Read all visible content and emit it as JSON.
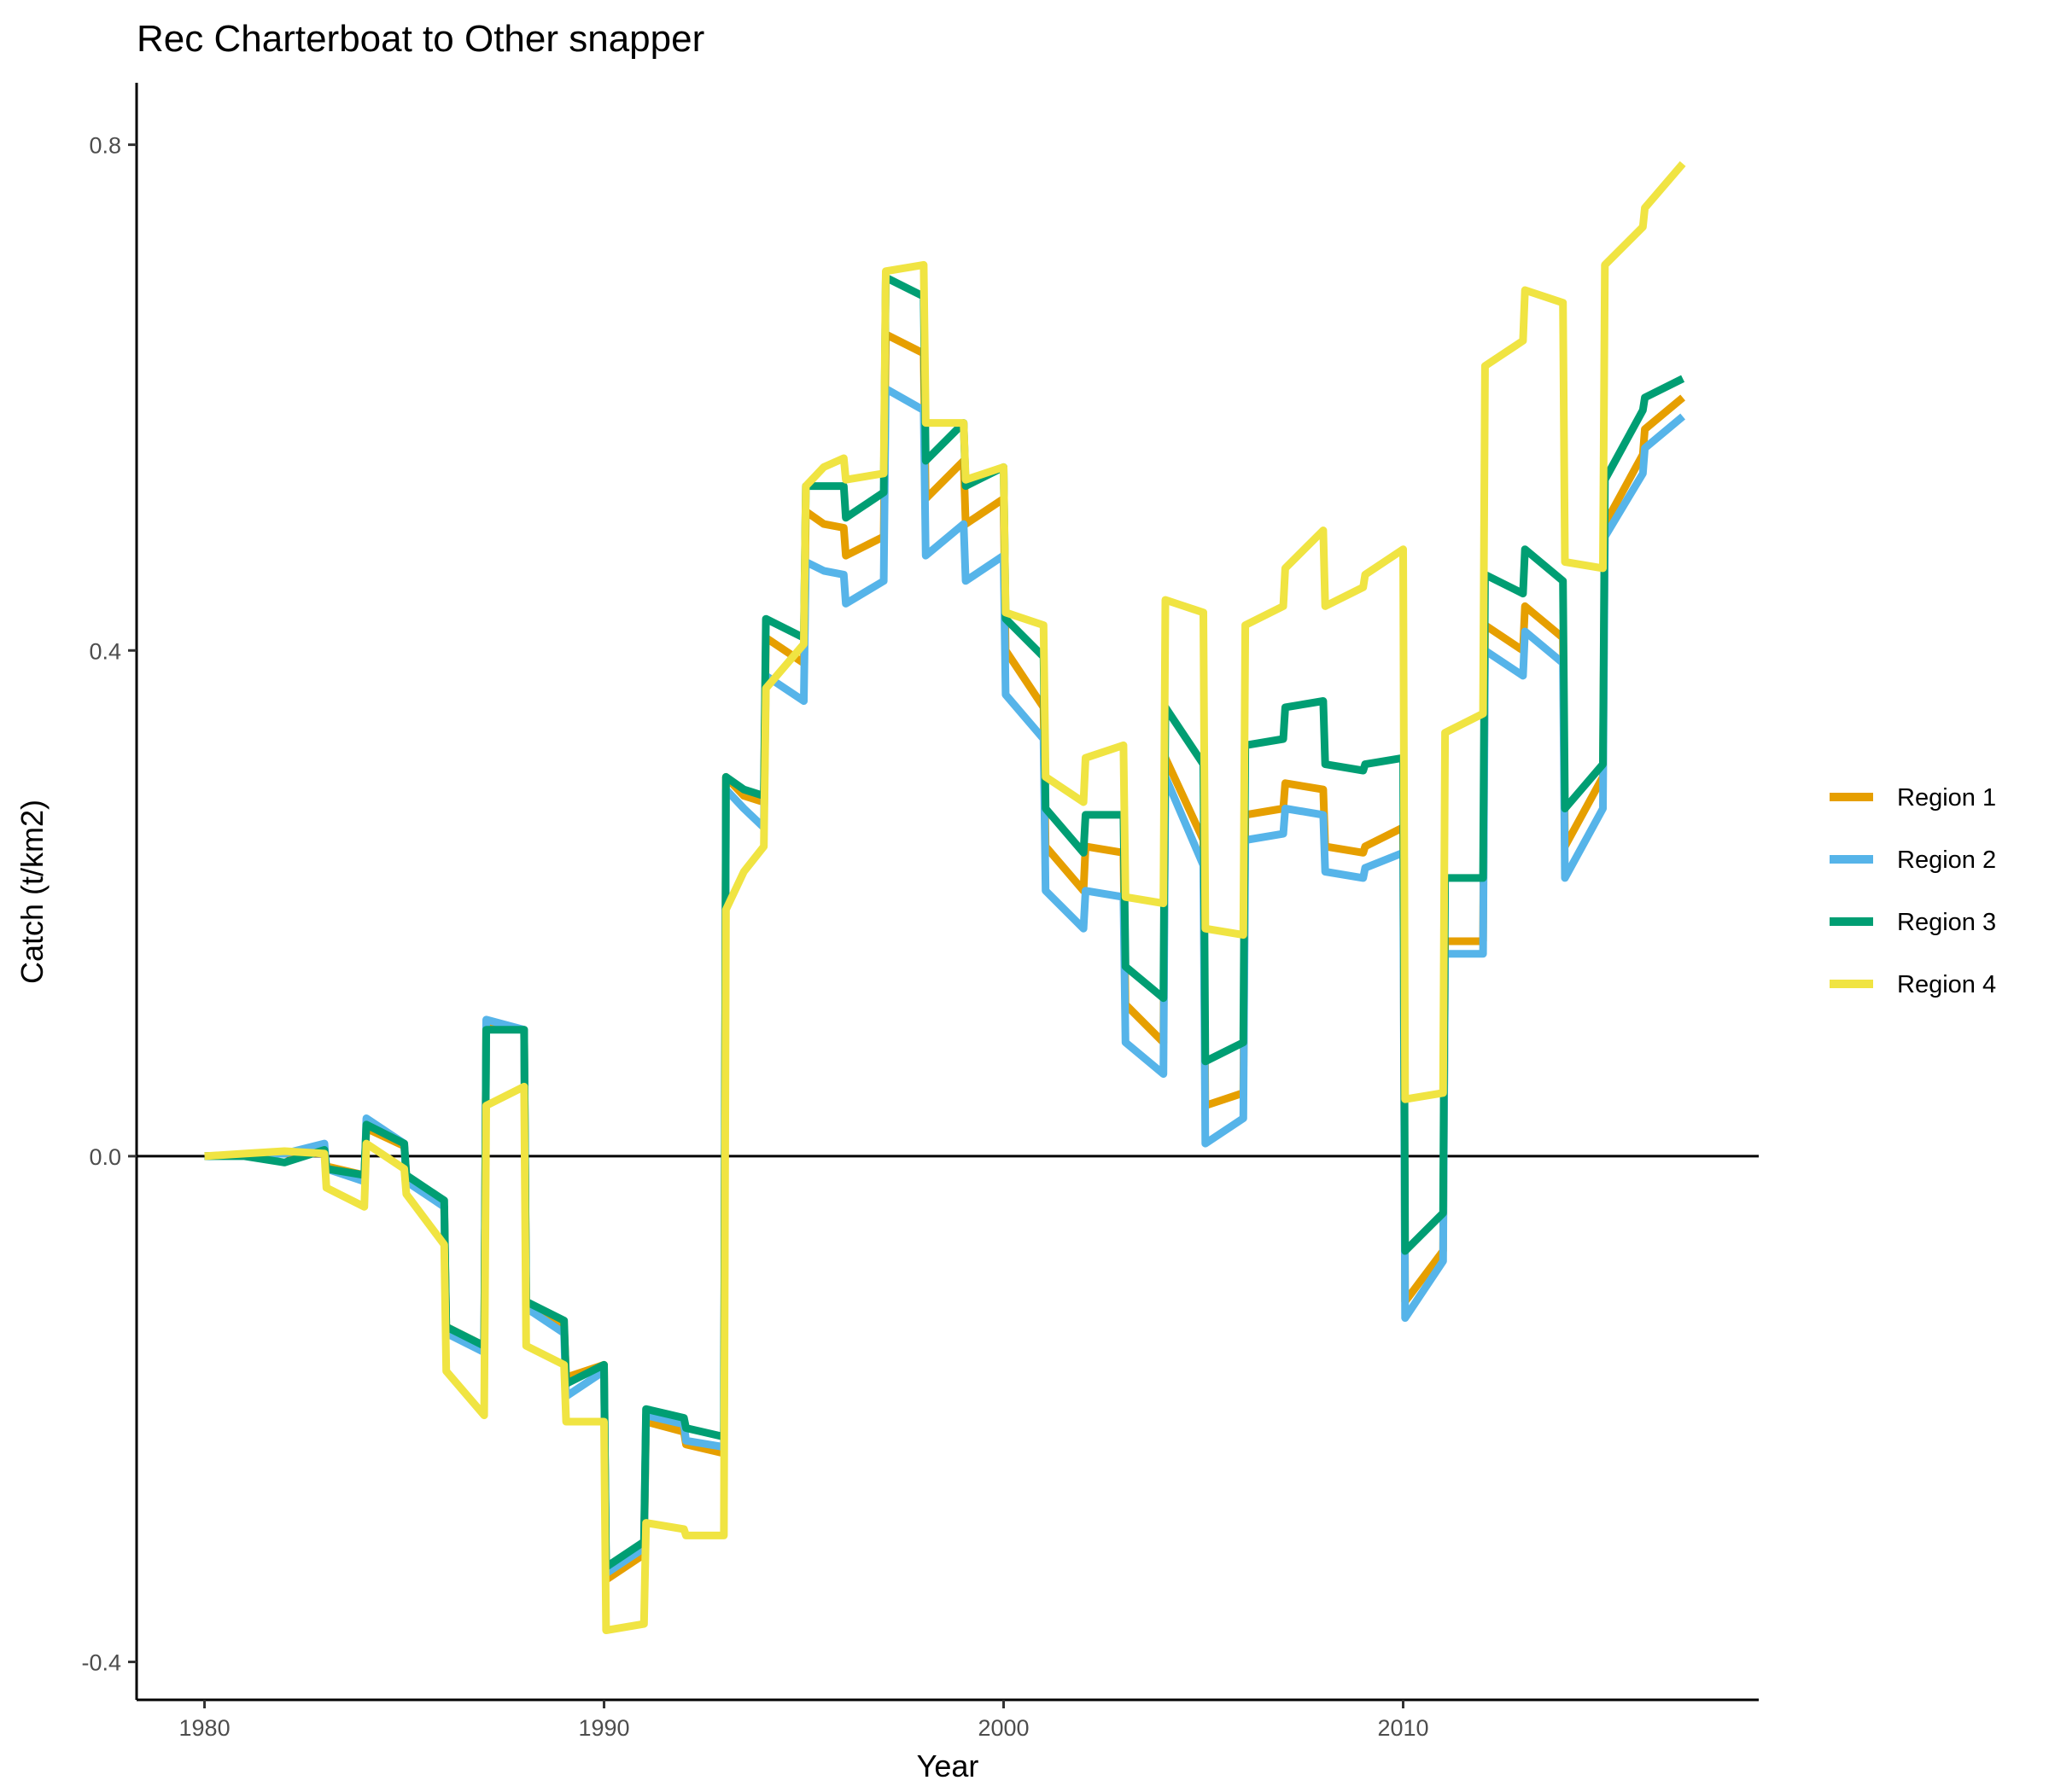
{
  "chart_data": {
    "type": "line",
    "title": "Rec Charterboat to Other snapper",
    "xlabel": "Year",
    "ylabel": "Catch (t/km2)",
    "xlim": [
      1978.3,
      2018.9
    ],
    "ylim": [
      -0.43,
      0.849
    ],
    "x_ticks": [
      1980,
      1990,
      2000,
      2010
    ],
    "y_ticks": [
      -0.4,
      0.0,
      0.4,
      0.8
    ],
    "y_tick_labels": [
      "-0.4",
      "0.0",
      "0.4",
      "0.8"
    ],
    "zero_line": true,
    "grid": false,
    "legend_position": "right",
    "series": [
      {
        "name": "Region 1",
        "color": "#E69F00",
        "points": [
          [
            1980,
            0
          ],
          [
            1981,
            0.001
          ],
          [
            1982,
            0.002
          ],
          [
            1983,
            0.005
          ],
          [
            1983.05,
            -0.008
          ],
          [
            1984,
            -0.015
          ],
          [
            1984.05,
            0.022
          ],
          [
            1985,
            0.008
          ],
          [
            1985.05,
            -0.015
          ],
          [
            1986,
            -0.04
          ],
          [
            1986.05,
            -0.135
          ],
          [
            1987,
            -0.15
          ],
          [
            1987.05,
            0.105
          ],
          [
            1988,
            0.1
          ],
          [
            1988.05,
            -0.115
          ],
          [
            1989,
            -0.135
          ],
          [
            1989.05,
            -0.175
          ],
          [
            1990,
            -0.165
          ],
          [
            1990.05,
            -0.335
          ],
          [
            1991,
            -0.315
          ],
          [
            1991.05,
            -0.21
          ],
          [
            1992,
            -0.218
          ],
          [
            1992.05,
            -0.228
          ],
          [
            1993,
            -0.235
          ],
          [
            1993.05,
            0.3
          ],
          [
            1993.5,
            0.285
          ],
          [
            1994,
            0.28
          ],
          [
            1994.05,
            0.41
          ],
          [
            1995,
            0.39
          ],
          [
            1995.05,
            0.51
          ],
          [
            1995.5,
            0.5
          ],
          [
            1996,
            0.497
          ],
          [
            1996.05,
            0.475
          ],
          [
            1997,
            0.49
          ],
          [
            1997.05,
            0.65
          ],
          [
            1998,
            0.635
          ],
          [
            1998.05,
            0.52
          ],
          [
            1999,
            0.55
          ],
          [
            1999.05,
            0.5
          ],
          [
            2000,
            0.52
          ],
          [
            2000.05,
            0.4
          ],
          [
            2001,
            0.355
          ],
          [
            2001.05,
            0.245
          ],
          [
            2002,
            0.21
          ],
          [
            2002.05,
            0.245
          ],
          [
            2003,
            0.24
          ],
          [
            2003.05,
            0.12
          ],
          [
            2004,
            0.09
          ],
          [
            2004.05,
            0.315
          ],
          [
            2005,
            0.25
          ],
          [
            2005.05,
            0.04
          ],
          [
            2006,
            0.05
          ],
          [
            2006.05,
            0.27
          ],
          [
            2007,
            0.275
          ],
          [
            2007.05,
            0.295
          ],
          [
            2008,
            0.29
          ],
          [
            2008.05,
            0.245
          ],
          [
            2009,
            0.24
          ],
          [
            2009.05,
            0.245
          ],
          [
            2010,
            0.26
          ],
          [
            2010.05,
            -0.115
          ],
          [
            2011,
            -0.075
          ],
          [
            2011.05,
            0.17
          ],
          [
            2012,
            0.17
          ],
          [
            2012.05,
            0.42
          ],
          [
            2013,
            0.4
          ],
          [
            2013.05,
            0.435
          ],
          [
            2014,
            0.41
          ],
          [
            2014.05,
            0.245
          ],
          [
            2015,
            0.3
          ],
          [
            2015.05,
            0.5
          ],
          [
            2016,
            0.555
          ],
          [
            2016.05,
            0.575
          ],
          [
            2017,
            0.6
          ]
        ]
      },
      {
        "name": "Region 2",
        "color": "#56B4E9",
        "points": [
          [
            1980,
            0
          ],
          [
            1981,
            0.001
          ],
          [
            1982,
            0.002
          ],
          [
            1983,
            0.01
          ],
          [
            1983.05,
            -0.01
          ],
          [
            1984,
            -0.02
          ],
          [
            1984.05,
            0.03
          ],
          [
            1985,
            0.01
          ],
          [
            1985.05,
            -0.02
          ],
          [
            1986,
            -0.04
          ],
          [
            1986.05,
            -0.14
          ],
          [
            1987,
            -0.155
          ],
          [
            1987.05,
            0.108
          ],
          [
            1988,
            0.1
          ],
          [
            1988.05,
            -0.12
          ],
          [
            1989,
            -0.14
          ],
          [
            1989.05,
            -0.19
          ],
          [
            1990,
            -0.17
          ],
          [
            1990.05,
            -0.33
          ],
          [
            1991,
            -0.31
          ],
          [
            1991.05,
            -0.205
          ],
          [
            1992,
            -0.212
          ],
          [
            1992.05,
            -0.225
          ],
          [
            1993,
            -0.23
          ],
          [
            1993.05,
            0.29
          ],
          [
            1993.5,
            0.275
          ],
          [
            1994,
            0.26
          ],
          [
            1994.05,
            0.38
          ],
          [
            1995,
            0.36
          ],
          [
            1995.05,
            0.47
          ],
          [
            1995.5,
            0.463
          ],
          [
            1996,
            0.46
          ],
          [
            1996.05,
            0.437
          ],
          [
            1997,
            0.455
          ],
          [
            1997.05,
            0.607
          ],
          [
            1998,
            0.59
          ],
          [
            1998.05,
            0.475
          ],
          [
            1999,
            0.5
          ],
          [
            1999.05,
            0.455
          ],
          [
            2000,
            0.475
          ],
          [
            2000.05,
            0.365
          ],
          [
            2001,
            0.33
          ],
          [
            2001.05,
            0.21
          ],
          [
            2002,
            0.18
          ],
          [
            2002.05,
            0.21
          ],
          [
            2003,
            0.205
          ],
          [
            2003.05,
            0.09
          ],
          [
            2004,
            0.065
          ],
          [
            2004.05,
            0.3
          ],
          [
            2005,
            0.23
          ],
          [
            2005.05,
            0.01
          ],
          [
            2006,
            0.03
          ],
          [
            2006.05,
            0.25
          ],
          [
            2007,
            0.255
          ],
          [
            2007.05,
            0.275
          ],
          [
            2008,
            0.27
          ],
          [
            2008.05,
            0.225
          ],
          [
            2009,
            0.22
          ],
          [
            2009.05,
            0.228
          ],
          [
            2010,
            0.24
          ],
          [
            2010.05,
            -0.128
          ],
          [
            2011,
            -0.083
          ],
          [
            2011.05,
            0.16
          ],
          [
            2012,
            0.16
          ],
          [
            2012.05,
            0.4
          ],
          [
            2013,
            0.38
          ],
          [
            2013.05,
            0.415
          ],
          [
            2014,
            0.39
          ],
          [
            2014.05,
            0.22
          ],
          [
            2015,
            0.275
          ],
          [
            2015.05,
            0.49
          ],
          [
            2016,
            0.54
          ],
          [
            2016.05,
            0.56
          ],
          [
            2017,
            0.585
          ]
        ]
      },
      {
        "name": "Region 3",
        "color": "#009E73",
        "points": [
          [
            1980,
            0
          ],
          [
            1981,
            0.0
          ],
          [
            1982,
            -0.005
          ],
          [
            1983,
            0.005
          ],
          [
            1983.05,
            -0.01
          ],
          [
            1984,
            -0.015
          ],
          [
            1984.05,
            0.025
          ],
          [
            1985,
            0.01
          ],
          [
            1985.05,
            -0.015
          ],
          [
            1986,
            -0.035
          ],
          [
            1986.05,
            -0.135
          ],
          [
            1987,
            -0.15
          ],
          [
            1987.05,
            0.1
          ],
          [
            1988,
            0.1
          ],
          [
            1988.05,
            -0.115
          ],
          [
            1989,
            -0.13
          ],
          [
            1989.05,
            -0.18
          ],
          [
            1990,
            -0.165
          ],
          [
            1990.05,
            -0.325
          ],
          [
            1991,
            -0.305
          ],
          [
            1991.05,
            -0.2
          ],
          [
            1992,
            -0.207
          ],
          [
            1992.05,
            -0.215
          ],
          [
            1993,
            -0.222
          ],
          [
            1993.05,
            0.3
          ],
          [
            1993.5,
            0.29
          ],
          [
            1994,
            0.285
          ],
          [
            1994.05,
            0.425
          ],
          [
            1995,
            0.41
          ],
          [
            1995.05,
            0.53
          ],
          [
            1995.5,
            0.53
          ],
          [
            1996,
            0.53
          ],
          [
            1996.05,
            0.505
          ],
          [
            1997,
            0.525
          ],
          [
            1997.05,
            0.695
          ],
          [
            1998,
            0.68
          ],
          [
            1998.05,
            0.55
          ],
          [
            1999,
            0.58
          ],
          [
            1999.05,
            0.53
          ],
          [
            2000,
            0.545
          ],
          [
            2000.05,
            0.425
          ],
          [
            2001,
            0.395
          ],
          [
            2001.05,
            0.275
          ],
          [
            2002,
            0.24
          ],
          [
            2002.05,
            0.27
          ],
          [
            2003,
            0.27
          ],
          [
            2003.05,
            0.15
          ],
          [
            2004,
            0.125
          ],
          [
            2004.05,
            0.355
          ],
          [
            2005,
            0.31
          ],
          [
            2005.05,
            0.075
          ],
          [
            2006,
            0.09
          ],
          [
            2006.05,
            0.325
          ],
          [
            2007,
            0.33
          ],
          [
            2007.05,
            0.355
          ],
          [
            2008,
            0.36
          ],
          [
            2008.05,
            0.31
          ],
          [
            2009,
            0.305
          ],
          [
            2009.05,
            0.31
          ],
          [
            2010,
            0.315
          ],
          [
            2010.05,
            -0.075
          ],
          [
            2011,
            -0.045
          ],
          [
            2011.05,
            0.22
          ],
          [
            2012,
            0.22
          ],
          [
            2012.05,
            0.46
          ],
          [
            2013,
            0.445
          ],
          [
            2013.05,
            0.48
          ],
          [
            2014,
            0.455
          ],
          [
            2014.05,
            0.275
          ],
          [
            2015,
            0.31
          ],
          [
            2015.05,
            0.535
          ],
          [
            2016,
            0.59
          ],
          [
            2016.05,
            0.6
          ],
          [
            2017,
            0.615
          ]
        ]
      },
      {
        "name": "Region 4",
        "color": "#F0E442",
        "points": [
          [
            1980,
            0
          ],
          [
            1981,
            0.002
          ],
          [
            1982,
            0.004
          ],
          [
            1983,
            0.002
          ],
          [
            1983.05,
            -0.025
          ],
          [
            1984,
            -0.04
          ],
          [
            1984.05,
            0.01
          ],
          [
            1985,
            -0.01
          ],
          [
            1985.05,
            -0.03
          ],
          [
            1986,
            -0.07
          ],
          [
            1986.05,
            -0.17
          ],
          [
            1987,
            -0.205
          ],
          [
            1987.05,
            0.04
          ],
          [
            1988,
            0.055
          ],
          [
            1988.05,
            -0.15
          ],
          [
            1989,
            -0.165
          ],
          [
            1989.05,
            -0.21
          ],
          [
            1990,
            -0.21
          ],
          [
            1990.05,
            -0.375
          ],
          [
            1991,
            -0.37
          ],
          [
            1991.05,
            -0.29
          ],
          [
            1992,
            -0.295
          ],
          [
            1992.05,
            -0.3
          ],
          [
            1993,
            -0.3
          ],
          [
            1993.05,
            0.195
          ],
          [
            1993.5,
            0.225
          ],
          [
            1994,
            0.245
          ],
          [
            1994.05,
            0.37
          ],
          [
            1995,
            0.405
          ],
          [
            1995.05,
            0.53
          ],
          [
            1995.5,
            0.545
          ],
          [
            1996,
            0.552
          ],
          [
            1996.05,
            0.535
          ],
          [
            1997,
            0.54
          ],
          [
            1997.05,
            0.7
          ],
          [
            1998,
            0.705
          ],
          [
            1998.05,
            0.58
          ],
          [
            1999,
            0.58
          ],
          [
            1999.05,
            0.535
          ],
          [
            2000,
            0.545
          ],
          [
            2000.05,
            0.43
          ],
          [
            2001,
            0.42
          ],
          [
            2001.05,
            0.3
          ],
          [
            2002,
            0.28
          ],
          [
            2002.05,
            0.315
          ],
          [
            2003,
            0.325
          ],
          [
            2003.05,
            0.205
          ],
          [
            2004,
            0.2
          ],
          [
            2004.05,
            0.44
          ],
          [
            2005,
            0.43
          ],
          [
            2005.05,
            0.18
          ],
          [
            2006,
            0.175
          ],
          [
            2006.05,
            0.42
          ],
          [
            2007,
            0.435
          ],
          [
            2007.05,
            0.465
          ],
          [
            2008,
            0.495
          ],
          [
            2008.05,
            0.435
          ],
          [
            2009,
            0.45
          ],
          [
            2009.05,
            0.46
          ],
          [
            2010,
            0.48
          ],
          [
            2010.05,
            0.045
          ],
          [
            2011,
            0.05
          ],
          [
            2011.05,
            0.335
          ],
          [
            2012,
            0.35
          ],
          [
            2012.05,
            0.625
          ],
          [
            2013,
            0.645
          ],
          [
            2013.05,
            0.685
          ],
          [
            2014,
            0.675
          ],
          [
            2014.05,
            0.47
          ],
          [
            2015,
            0.465
          ],
          [
            2015.05,
            0.705
          ],
          [
            2016,
            0.735
          ],
          [
            2016.05,
            0.75
          ],
          [
            2017,
            0.785
          ]
        ]
      }
    ]
  }
}
